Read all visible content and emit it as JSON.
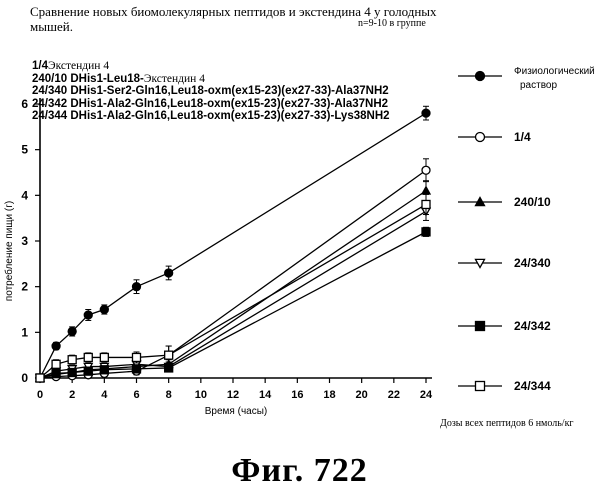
{
  "header": {
    "title_line1": "Сравнение новых биомолекулярных пептидов и экстендина 4 у голодных",
    "title_line2": "мышей.",
    "group_note": "n=9-10 в группе"
  },
  "abbreviations": [
    {
      "code": "1/4",
      "text": "Экстендин 4"
    },
    {
      "code": "240/10 DHis1-Leu18-",
      "text": "Экстендин 4"
    },
    {
      "code": "24/340 DHis1-Ser2-Gln16,Leu18-oxm(ex15-23)(ex27-33)-Ala37NH2",
      "text": ""
    },
    {
      "code": "24/342 DHis1-Ala2-Gln16,Leu18-oxm(ex15-23)(ex27-33)-Ala37NH2",
      "text": ""
    },
    {
      "code": "24/344 DHis1-Ala2-Gln16,Leu18-oxm(ex15-23)(ex27-33)-Lys38NH2",
      "text": ""
    }
  ],
  "dose_note": "Дозы всех пептидов 6 нмоль/кг",
  "figure_label": "Фиг.   722",
  "chart_data": {
    "type": "line",
    "xlabel": "Время (часы)",
    "ylabel": "потребление пищи (г)",
    "xlim": [
      0,
      24
    ],
    "ylim": [
      0,
      6
    ],
    "xticks": [
      0,
      2,
      4,
      6,
      8,
      10,
      12,
      14,
      16,
      18,
      20,
      22,
      24
    ],
    "yticks": [
      0,
      1,
      2,
      3,
      4,
      5,
      6
    ],
    "grid": false,
    "legend_position": "right",
    "x": [
      0,
      1,
      2,
      3,
      4,
      6,
      8,
      24
    ],
    "series": [
      {
        "name": "Физиологический раствор",
        "marker": "filled-circle",
        "x": [
          0,
          1,
          2,
          3,
          4,
          6,
          8,
          24
        ],
        "values": [
          0.0,
          0.7,
          1.02,
          1.38,
          1.5,
          2.0,
          2.3,
          5.8
        ],
        "errors": [
          0,
          0.08,
          0.1,
          0.12,
          0.1,
          0.15,
          0.15,
          0.15
        ]
      },
      {
        "name": "1/4",
        "marker": "open-circle",
        "x": [
          0,
          1,
          2,
          3,
          4,
          6,
          8,
          24
        ],
        "values": [
          0.0,
          0.03,
          0.05,
          0.07,
          0.1,
          0.15,
          0.5,
          4.55
        ],
        "errors": [
          0,
          0.04,
          0.05,
          0.05,
          0.05,
          0.08,
          0.2,
          0.25
        ]
      },
      {
        "name": "240/10",
        "marker": "filled-triangle",
        "x": [
          0,
          1,
          2,
          3,
          4,
          6,
          8,
          24
        ],
        "values": [
          0.0,
          0.08,
          0.12,
          0.18,
          0.2,
          0.25,
          0.3,
          4.1
        ],
        "errors": [
          0,
          0.05,
          0.05,
          0.06,
          0.06,
          0.08,
          0.1,
          0.22
        ]
      },
      {
        "name": "24/340",
        "marker": "open-triangle-down",
        "x": [
          0,
          1,
          2,
          3,
          4,
          6,
          8,
          24
        ],
        "values": [
          0.0,
          0.15,
          0.2,
          0.25,
          0.25,
          0.3,
          0.25,
          3.65
        ],
        "errors": [
          0,
          0.06,
          0.06,
          0.07,
          0.07,
          0.08,
          0.1,
          0.2
        ]
      },
      {
        "name": "24/342",
        "marker": "filled-square",
        "x": [
          0,
          1,
          2,
          3,
          4,
          6,
          8,
          24
        ],
        "values": [
          0.0,
          0.1,
          0.12,
          0.15,
          0.18,
          0.2,
          0.22,
          3.2
        ],
        "errors": [
          0,
          0.05,
          0.05,
          0.05,
          0.06,
          0.07,
          0.08,
          0.1
        ]
      },
      {
        "name": "24/344",
        "marker": "open-square",
        "x": [
          0,
          1,
          2,
          3,
          4,
          6,
          8,
          24
        ],
        "values": [
          0.0,
          0.3,
          0.4,
          0.45,
          0.45,
          0.45,
          0.5,
          3.8
        ],
        "errors": [
          0,
          0.1,
          0.1,
          0.1,
          0.1,
          0.12,
          0.2,
          0.22
        ]
      }
    ]
  }
}
